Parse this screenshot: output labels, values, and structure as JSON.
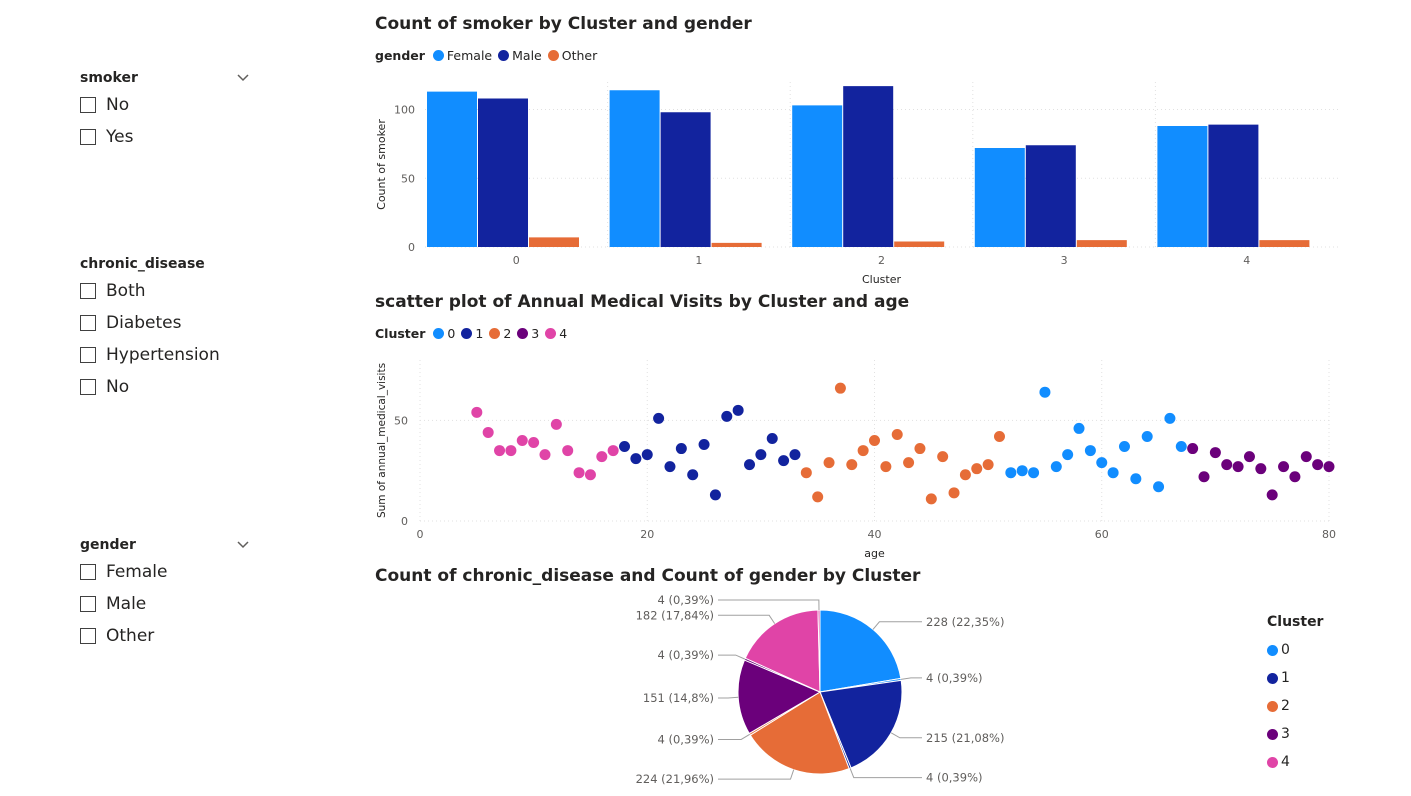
{
  "slicers": {
    "smoker": {
      "title": "smoker",
      "options": [
        "No",
        "Yes"
      ]
    },
    "chronic_disease": {
      "title": "chronic_disease",
      "options": [
        "Both",
        "Diabetes",
        "Hypertension",
        "No"
      ]
    },
    "gender": {
      "title": "gender",
      "options": [
        "Female",
        "Male",
        "Other"
      ]
    }
  },
  "colors": {
    "c0": "#118DFF",
    "c1": "#12239E",
    "c2": "#E66C37",
    "c3": "#6B007B",
    "c4": "#E044A7"
  },
  "chart_data": [
    {
      "type": "bar",
      "title": "Count of smoker by Cluster and gender",
      "legend_title": "gender",
      "xlabel": "Cluster",
      "ylabel": "Count of smoker",
      "categories": [
        "0",
        "1",
        "2",
        "3",
        "4"
      ],
      "ylim": [
        0,
        120
      ],
      "yticks": [
        0,
        50,
        100
      ],
      "series": [
        {
          "name": "Female",
          "color": "#118DFF",
          "values": [
            113,
            114,
            103,
            72,
            88
          ]
        },
        {
          "name": "Male",
          "color": "#12239E",
          "values": [
            108,
            98,
            117,
            74,
            89
          ]
        },
        {
          "name": "Other",
          "color": "#E66C37",
          "values": [
            7,
            3,
            4,
            5,
            5
          ]
        }
      ]
    },
    {
      "type": "scatter",
      "title": "scatter plot of Annual Medical Visits by Cluster and age",
      "legend_title": "Cluster",
      "xlabel": "age",
      "ylabel": "Sum of annual_medical_visits",
      "xlim": [
        0,
        80
      ],
      "ylim": [
        0,
        80
      ],
      "xticks": [
        0,
        20,
        40,
        60,
        80
      ],
      "yticks": [
        0,
        50
      ],
      "series": [
        {
          "name": "0",
          "color": "#118DFF",
          "points": [
            [
              52,
              24
            ],
            [
              53,
              25
            ],
            [
              54,
              24
            ],
            [
              55,
              64
            ],
            [
              56,
              27
            ],
            [
              57,
              33
            ],
            [
              58,
              46
            ],
            [
              59,
              35
            ],
            [
              60,
              29
            ],
            [
              61,
              24
            ],
            [
              62,
              37
            ],
            [
              63,
              21
            ],
            [
              64,
              42
            ],
            [
              65,
              17
            ],
            [
              66,
              51
            ],
            [
              67,
              37
            ]
          ]
        },
        {
          "name": "1",
          "color": "#12239E",
          "points": [
            [
              18,
              37
            ],
            [
              19,
              31
            ],
            [
              20,
              33
            ],
            [
              21,
              51
            ],
            [
              22,
              27
            ],
            [
              23,
              36
            ],
            [
              24,
              23
            ],
            [
              25,
              38
            ],
            [
              26,
              13
            ],
            [
              27,
              52
            ],
            [
              28,
              55
            ],
            [
              29,
              28
            ],
            [
              30,
              33
            ],
            [
              31,
              41
            ],
            [
              32,
              30
            ],
            [
              33,
              33
            ]
          ]
        },
        {
          "name": "2",
          "color": "#E66C37",
          "points": [
            [
              34,
              24
            ],
            [
              35,
              12
            ],
            [
              36,
              29
            ],
            [
              37,
              66
            ],
            [
              38,
              28
            ],
            [
              39,
              35
            ],
            [
              40,
              40
            ],
            [
              41,
              27
            ],
            [
              42,
              43
            ],
            [
              43,
              29
            ],
            [
              44,
              36
            ],
            [
              45,
              11
            ],
            [
              46,
              32
            ],
            [
              47,
              14
            ],
            [
              48,
              23
            ],
            [
              49,
              26
            ],
            [
              50,
              28
            ],
            [
              51,
              42
            ]
          ]
        },
        {
          "name": "3",
          "color": "#6B007B",
          "points": [
            [
              68,
              36
            ],
            [
              69,
              22
            ],
            [
              70,
              34
            ],
            [
              71,
              28
            ],
            [
              72,
              27
            ],
            [
              73,
              32
            ],
            [
              74,
              26
            ],
            [
              75,
              13
            ],
            [
              76,
              27
            ],
            [
              77,
              22
            ],
            [
              78,
              32
            ],
            [
              79,
              28
            ],
            [
              80,
              27
            ]
          ]
        },
        {
          "name": "4",
          "color": "#E044A7",
          "points": [
            [
              5,
              54
            ],
            [
              6,
              44
            ],
            [
              7,
              35
            ],
            [
              8,
              35
            ],
            [
              9,
              40
            ],
            [
              10,
              39
            ],
            [
              11,
              33
            ],
            [
              12,
              48
            ],
            [
              13,
              35
            ],
            [
              14,
              24
            ],
            [
              15,
              23
            ],
            [
              16,
              32
            ],
            [
              17,
              35
            ]
          ]
        }
      ]
    },
    {
      "type": "pie",
      "title": "Count of chronic_disease and Count of gender by Cluster",
      "legend_title": "Cluster",
      "slices": [
        {
          "name": "0",
          "value": 228,
          "label": "228 (22,35%)",
          "color": "#118DFF"
        },
        {
          "name": "0",
          "value": 4,
          "label": "4 (0,39%)",
          "color": "#118DFF"
        },
        {
          "name": "1",
          "value": 215,
          "label": "215 (21,08%)",
          "color": "#12239E"
        },
        {
          "name": "1",
          "value": 4,
          "label": "4 (0,39%)",
          "color": "#12239E"
        },
        {
          "name": "2",
          "value": 224,
          "label": "224 (21,96%)",
          "color": "#E66C37"
        },
        {
          "name": "2",
          "value": 4,
          "label": "4 (0,39%)",
          "color": "#E66C37"
        },
        {
          "name": "3",
          "value": 151,
          "label": "151 (14,8%)",
          "color": "#6B007B"
        },
        {
          "name": "3",
          "value": 4,
          "label": "4 (0,39%)",
          "color": "#6B007B"
        },
        {
          "name": "4",
          "value": 182,
          "label": "182 (17,84%)",
          "color": "#E044A7"
        },
        {
          "name": "4",
          "value": 4,
          "label": "4 (0,39%)",
          "color": "#E044A7"
        }
      ]
    }
  ]
}
